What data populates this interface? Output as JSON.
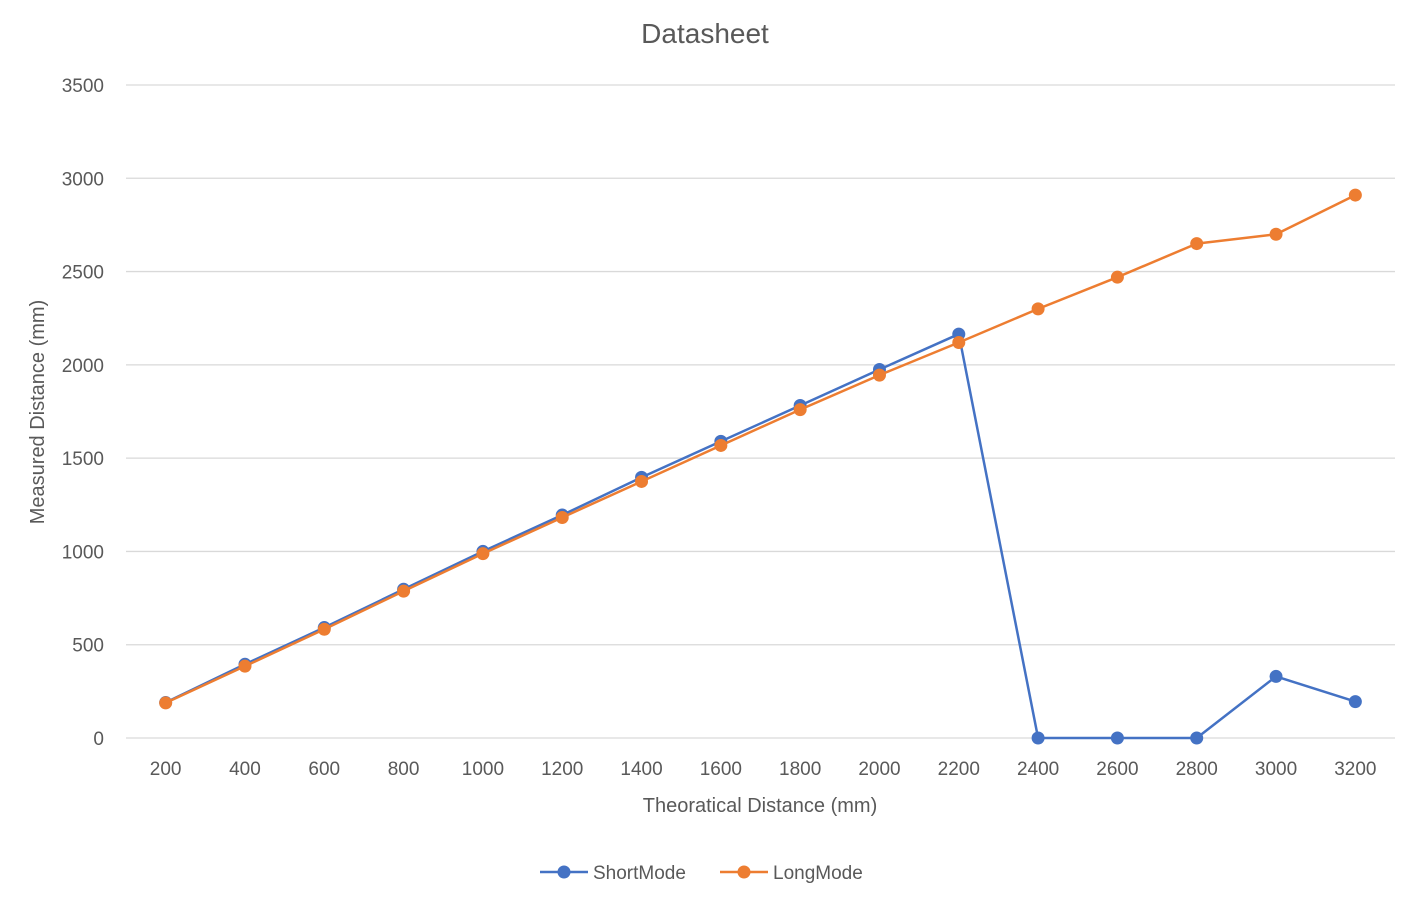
{
  "chart_data": {
    "type": "line",
    "title": "Datasheet",
    "xlabel": "Theoratical Distance (mm)",
    "ylabel": "Measured Distance (mm)",
    "ylim": [
      0,
      3500
    ],
    "yticks": [
      "0",
      "500",
      "1000",
      "1500",
      "2000",
      "2500",
      "3000",
      "3500"
    ],
    "categories": [
      "200",
      "400",
      "600",
      "800",
      "1000",
      "1200",
      "1400",
      "1600",
      "1800",
      "2000",
      "2200",
      "2400",
      "2600",
      "2800",
      "3000",
      "3200"
    ],
    "grid": true,
    "legend_position": "bottom",
    "series": [
      {
        "name": "ShortMode",
        "color": "#4472C4",
        "values": [
          190,
          395,
          592,
          797,
          1000,
          1195,
          1397,
          1590,
          1782,
          1975,
          2165,
          0,
          0,
          0,
          330,
          195
        ]
      },
      {
        "name": "LongMode",
        "color": "#ED7D31",
        "values": [
          188,
          385,
          583,
          787,
          988,
          1182,
          1375,
          1568,
          1760,
          1945,
          2120,
          2300,
          2470,
          2650,
          2700,
          2910
        ]
      }
    ]
  }
}
